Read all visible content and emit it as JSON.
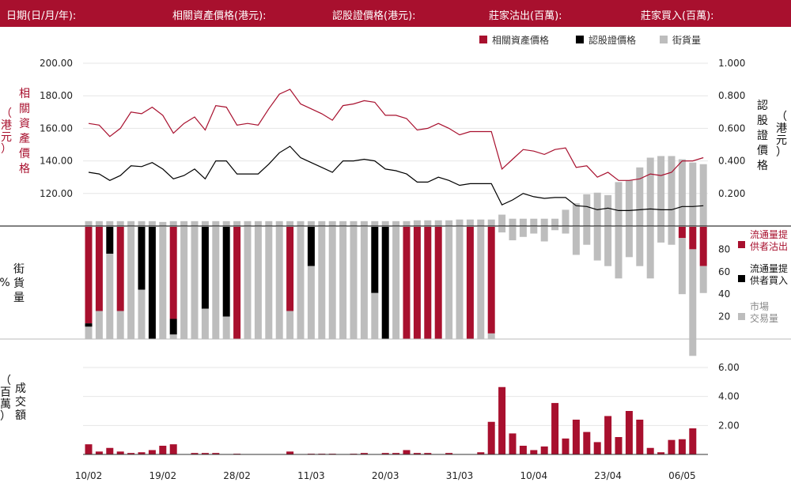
{
  "header": {
    "date": "日期(日/月/年):",
    "asset_price": "相關資產價格(港元):",
    "warrant_price": "認股證價格(港元):",
    "lp_sell": "莊家沽出(百萬):",
    "lp_buy": "莊家買入(百萬):"
  },
  "colors": {
    "brand": "#a8102e",
    "lp_sell": "#a8102e",
    "lp_buy": "#000000",
    "market": "#bdbdbd"
  },
  "chart_data": [
    {
      "type": "line",
      "legend": [
        "相關資產價格",
        "認股證價格",
        "街貨量"
      ],
      "legend_position": "top-right",
      "y_left": {
        "label": "相關資產價格（港元）",
        "ticks": [
          "200.00",
          "180.00",
          "160.00",
          "140.00",
          "120.00"
        ],
        "range": [
          100,
          200
        ]
      },
      "y_right": {
        "label": "認股證價格（港元）",
        "ticks": [
          "1.000",
          "0.800",
          "0.600",
          "0.400",
          "0.200"
        ],
        "range": [
          0,
          1
        ]
      },
      "series": [
        {
          "name": "相關資產價格",
          "color": "#a8102e",
          "axis": "left",
          "values": [
            163,
            162,
            155,
            160,
            170,
            169,
            173,
            168,
            157,
            163,
            167,
            159,
            174,
            173,
            162,
            163,
            162,
            172,
            181,
            184,
            175,
            172,
            169,
            165,
            174,
            175,
            177,
            176,
            168,
            168,
            166,
            159,
            160,
            163,
            160,
            156,
            158,
            158,
            158,
            135,
            141,
            147,
            146,
            144,
            147,
            148,
            136,
            137,
            130,
            133,
            128,
            128,
            129,
            132,
            131,
            133,
            140,
            140,
            142
          ],
          "markers": [
            "",
            "",
            "",
            "",
            "",
            "",
            "",
            "",
            "",
            "",
            "",
            "",
            "",
            "",
            "",
            "",
            "",
            "",
            "",
            "",
            "",
            "",
            "",
            "",
            "",
            "",
            "",
            "",
            "",
            "",
            "",
            "",
            "",
            "",
            "",
            "",
            "",
            "",
            "",
            "",
            "",
            "",
            "",
            "",
            "",
            "",
            "",
            "",
            "",
            "",
            "",
            "",
            "",
            "",
            "",
            "",
            "",
            "",
            ""
          ]
        },
        {
          "name": "認股證價格",
          "color": "#000000",
          "axis": "right",
          "values": [
            0.33,
            0.32,
            0.28,
            0.31,
            0.37,
            0.365,
            0.39,
            0.35,
            0.29,
            0.31,
            0.35,
            0.29,
            0.4,
            0.4,
            0.32,
            0.32,
            0.32,
            0.38,
            0.45,
            0.49,
            0.42,
            0.39,
            0.36,
            0.33,
            0.4,
            0.4,
            0.41,
            0.4,
            0.35,
            0.34,
            0.32,
            0.27,
            0.27,
            0.3,
            0.28,
            0.25,
            0.26,
            0.26,
            0.26,
            0.13,
            0.16,
            0.2,
            0.18,
            0.17,
            0.175,
            0.175,
            0.125,
            0.12,
            0.1,
            0.11,
            0.095,
            0.095,
            0.1,
            0.105,
            0.1,
            0.1,
            0.12,
            0.12,
            0.125
          ],
          "markers": [
            "",
            "",
            "",
            "",
            "",
            "",
            "",
            "",
            "",
            "",
            "",
            "",
            "",
            "",
            "",
            "",
            "",
            "",
            "",
            "",
            "",
            "",
            "",
            "",
            "",
            "",
            "",
            "",
            "",
            "",
            "",
            "",
            "",
            "",
            "",
            "",
            "",
            "",
            "",
            "",
            "",
            "",
            "",
            "",
            "",
            "",
            "",
            "",
            "",
            "",
            "",
            "",
            "",
            "",
            "",
            "",
            "",
            "",
            ""
          ]
        },
        {
          "name": "街貨量",
          "color": "#bdbdbd",
          "axis": "right",
          "kind": "bar",
          "values": [
            0.03,
            0.03,
            0.03,
            0.03,
            0.03,
            0.03,
            0.03,
            0.025,
            0.03,
            0.03,
            0.03,
            0.03,
            0.03,
            0.03,
            0.03,
            0.03,
            0.03,
            0.03,
            0.03,
            0.03,
            0.03,
            0.03,
            0.03,
            0.03,
            0.03,
            0.03,
            0.03,
            0.03,
            0.03,
            0.03,
            0.03,
            0.035,
            0.035,
            0.035,
            0.035,
            0.04,
            0.04,
            0.04,
            0.04,
            0.07,
            0.045,
            0.045,
            0.045,
            0.045,
            0.045,
            0.1,
            0.14,
            0.195,
            0.205,
            0.19,
            0.27,
            0.28,
            0.36,
            0.42,
            0.43,
            0.43,
            0.41,
            0.39,
            0.38
          ],
          "markers": [
            "",
            "",
            "",
            "",
            "",
            "",
            "",
            "",
            "",
            "",
            "",
            "",
            "",
            "",
            "",
            "",
            "",
            "",
            "",
            "",
            "",
            "",
            "",
            "",
            "",
            "",
            "",
            "",
            "",
            "",
            "",
            "",
            "",
            "",
            "",
            "",
            "",
            "",
            "",
            "",
            "",
            "",
            "",
            "",
            "",
            "",
            "",
            "",
            "",
            "",
            "",
            "",
            "",
            "",
            "",
            "",
            "",
            "",
            ""
          ]
        }
      ]
    },
    {
      "type": "bar",
      "stacked": true,
      "y_label": "%街貨量",
      "ticks": [
        "80",
        "60",
        "40",
        "20"
      ],
      "range": [
        0,
        100
      ],
      "legend": [
        "流通量提供者沽出",
        "流通量提供者買入",
        "市場交易量"
      ],
      "series": [
        {
          "name": "流通量提供者沽出",
          "color": "#a8102e",
          "values": [
            86,
            75,
            0,
            75,
            0,
            0,
            0,
            0,
            82,
            0,
            0,
            0,
            0,
            0,
            100,
            0,
            0,
            0,
            0,
            75,
            0,
            0,
            0,
            0,
            0,
            0,
            0,
            0,
            0,
            0,
            100,
            100,
            100,
            100,
            0,
            0,
            100,
            0,
            95,
            0,
            0,
            0,
            0,
            0,
            0,
            0,
            0,
            0,
            0,
            0,
            0,
            0,
            0,
            0,
            0,
            0,
            10,
            20,
            35
          ]
        },
        {
          "name": "流通量提供者買入",
          "color": "#000000",
          "values": [
            3,
            0,
            24,
            0,
            0,
            56,
            100,
            0,
            14,
            0,
            0,
            73,
            0,
            80,
            0,
            0,
            0,
            0,
            0,
            0,
            0,
            35,
            0,
            0,
            0,
            0,
            0,
            59,
            100,
            0,
            0,
            0,
            0,
            0,
            0,
            0,
            0,
            0,
            0,
            0,
            0,
            0,
            0,
            0,
            0,
            0,
            0,
            0,
            0,
            0,
            0,
            0,
            0,
            0,
            0,
            0,
            0,
            0,
            0
          ]
        },
        {
          "name": "市場交易量",
          "color": "#bdbdbd",
          "values": [
            11,
            25,
            76,
            25,
            100,
            44,
            0,
            100,
            4,
            100,
            100,
            27,
            100,
            20,
            0,
            100,
            100,
            100,
            100,
            25,
            100,
            65,
            100,
            100,
            100,
            100,
            100,
            41,
            0,
            100,
            0,
            0,
            0,
            0,
            100,
            100,
            0,
            100,
            5,
            5,
            12,
            9,
            6,
            13,
            3,
            6,
            25,
            16,
            30,
            35,
            46,
            27,
            35,
            46,
            14,
            16,
            50,
            95,
            24
          ]
        }
      ]
    },
    {
      "type": "bar",
      "y_label": "成交額（百萬）",
      "ticks": [
        "6.00",
        "4.00",
        "2.00"
      ],
      "range": [
        0,
        6
      ],
      "x_ticks": [
        "10/02",
        "19/02",
        "28/02",
        "11/03",
        "20/03",
        "31/03",
        "10/04",
        "23/04",
        "06/05"
      ],
      "values": [
        0.7,
        0.2,
        0.45,
        0.2,
        0.1,
        0.15,
        0.3,
        0.6,
        0.7,
        0,
        0.1,
        0.1,
        0.1,
        0,
        0.05,
        0,
        0,
        0,
        0,
        0.2,
        0,
        0.05,
        0.05,
        0.05,
        0,
        0.05,
        0.1,
        0,
        0.1,
        0.1,
        0.3,
        0.1,
        0.1,
        0,
        0.1,
        0,
        0,
        0.15,
        2.25,
        4.65,
        1.45,
        0.6,
        0.3,
        0.55,
        3.55,
        1.1,
        2.4,
        1.55,
        0.85,
        2.65,
        1.2,
        3.0,
        2.4,
        0.45,
        0.15,
        1.0,
        1.05,
        1.8,
        0
      ],
      "color": "#a8102e"
    }
  ],
  "labels": {
    "left_top": [
      "相",
      "關",
      "資",
      "產",
      "價",
      "格"
    ],
    "left_top_unit": [
      "（",
      "港",
      "元",
      "）"
    ],
    "right_top": [
      "認",
      "股",
      "證",
      "價",
      "格"
    ],
    "right_top_unit": [
      "（",
      "港",
      "元",
      "）"
    ],
    "mid_left_text": [
      "街",
      "貨",
      "量"
    ],
    "mid_left_unit": "%",
    "bot_left_text": [
      "成",
      "交",
      "額"
    ],
    "bot_left_unit": [
      "（",
      "百",
      "萬",
      "）"
    ],
    "legend_mid": [
      [
        "流通量提",
        "供者沽出"
      ],
      [
        "流通量提",
        "供者買入"
      ],
      [
        "市場",
        "交易量"
      ]
    ]
  }
}
